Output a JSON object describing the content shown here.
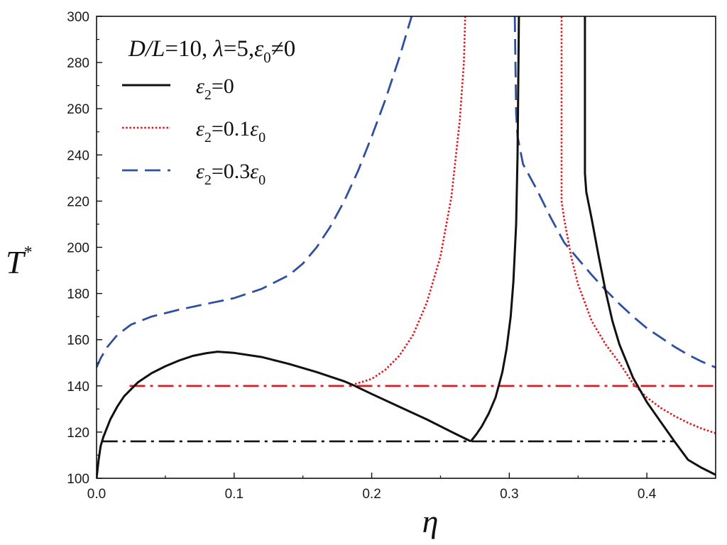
{
  "chart_data": {
    "type": "line",
    "title_parts": [
      "D/L",
      "=10, ",
      "λ",
      "=5,",
      "ε",
      "0",
      "≠0"
    ],
    "xlabel": "η",
    "ylabel": "T",
    "ylabel_sup": "*",
    "xlim": [
      0.0,
      0.45
    ],
    "ylim": [
      100,
      300
    ],
    "x_ticks": [
      0.0,
      0.1,
      0.2,
      0.3,
      0.4
    ],
    "x_tick_labels": [
      "0.0",
      "0.1",
      "0.2",
      "0.3",
      "0.4"
    ],
    "y_ticks": [
      100,
      120,
      140,
      160,
      180,
      200,
      220,
      240,
      260,
      280,
      300
    ],
    "y_tick_labels": [
      "100",
      "120",
      "140",
      "160",
      "180",
      "200",
      "220",
      "240",
      "260",
      "280",
      "300"
    ],
    "grid": false,
    "legend_position": "top-left",
    "series": [
      {
        "legend_parts": [
          "ε",
          "2",
          "=0"
        ],
        "color": "#111111",
        "style": "solid",
        "segments": [
          [
            [
              0.0,
              100
            ],
            [
              0.0015,
              108
            ],
            [
              0.003,
              114
            ],
            [
              0.005,
              118
            ],
            [
              0.01,
              125.5
            ],
            [
              0.015,
              131
            ],
            [
              0.02,
              135.5
            ],
            [
              0.03,
              141.5
            ],
            [
              0.04,
              145.5
            ],
            [
              0.05,
              148.5
            ],
            [
              0.06,
              151
            ],
            [
              0.07,
              153
            ],
            [
              0.08,
              154.2
            ],
            [
              0.088,
              154.8
            ],
            [
              0.1,
              154.3
            ],
            [
              0.12,
              152.5
            ],
            [
              0.14,
              149.5
            ],
            [
              0.16,
              146
            ],
            [
              0.18,
              142
            ],
            [
              0.186,
              140.5
            ],
            [
              0.2,
              136.5
            ],
            [
              0.22,
              131
            ],
            [
              0.24,
              125.5
            ],
            [
              0.26,
              119.5
            ],
            [
              0.272,
              116
            ]
          ],
          [
            [
              0.272,
              116
            ],
            [
              0.276,
              119
            ],
            [
              0.28,
              122.5
            ],
            [
              0.285,
              128
            ],
            [
              0.29,
              135
            ],
            [
              0.295,
              146
            ],
            [
              0.298,
              156
            ],
            [
              0.301,
              170
            ],
            [
              0.303,
              185
            ],
            [
              0.305,
              210
            ],
            [
              0.306,
              240
            ],
            [
              0.307,
              300
            ]
          ],
          [
            [
              0.355,
              300
            ],
            [
              0.355,
              232
            ],
            [
              0.356,
              224
            ],
            [
              0.36,
              212
            ],
            [
              0.365,
              196
            ],
            [
              0.37,
              181
            ],
            [
              0.375,
              168
            ],
            [
              0.38,
              158
            ],
            [
              0.39,
              143.5
            ],
            [
              0.4,
              133
            ],
            [
              0.41,
              124.5
            ],
            [
              0.42,
              116
            ],
            [
              0.43,
              108
            ],
            [
              0.44,
              104.5
            ],
            [
              0.45,
              101.5
            ]
          ]
        ]
      },
      {
        "legend_parts": [
          "ε",
          "2",
          "=0.1",
          "ε",
          "0"
        ],
        "color": "#e0191f",
        "style": "dotted",
        "segments": [
          [
            [
              0.0,
              100
            ],
            [
              0.0015,
              108
            ],
            [
              0.003,
              114
            ],
            [
              0.005,
              118
            ],
            [
              0.01,
              125.5
            ],
            [
              0.015,
              131
            ],
            [
              0.02,
              135.5
            ],
            [
              0.03,
              141.5
            ],
            [
              0.04,
              145.5
            ],
            [
              0.05,
              148.5
            ],
            [
              0.06,
              151
            ],
            [
              0.07,
              153
            ],
            [
              0.08,
              154.2
            ],
            [
              0.088,
              154.8
            ],
            [
              0.1,
              154.3
            ],
            [
              0.12,
              152.5
            ],
            [
              0.14,
              149.5
            ],
            [
              0.16,
              146
            ],
            [
              0.18,
              142
            ],
            [
              0.186,
              140.5
            ],
            [
              0.2,
              143
            ],
            [
              0.21,
              147
            ],
            [
              0.22,
              153
            ],
            [
              0.23,
              162
            ],
            [
              0.24,
              176
            ],
            [
              0.25,
              196
            ],
            [
              0.258,
              222
            ],
            [
              0.264,
              255
            ],
            [
              0.267,
              280
            ],
            [
              0.268,
              300
            ]
          ],
          [
            [
              0.338,
              300
            ],
            [
              0.338,
              220
            ],
            [
              0.34,
              212
            ],
            [
              0.345,
              196
            ],
            [
              0.35,
              184
            ],
            [
              0.36,
              168
            ],
            [
              0.37,
              158
            ],
            [
              0.38,
              150
            ],
            [
              0.39,
              141
            ],
            [
              0.4,
              135
            ],
            [
              0.41,
              130.5
            ],
            [
              0.42,
              127
            ],
            [
              0.43,
              124
            ],
            [
              0.44,
              121.5
            ],
            [
              0.45,
              119.5
            ]
          ]
        ]
      },
      {
        "legend_parts": [
          "ε",
          "2",
          "=0.3",
          "ε",
          "0"
        ],
        "color": "#2f4fa0",
        "style": "dashed",
        "segments": [
          [
            [
              0.0,
              148
            ],
            [
              0.003,
              152
            ],
            [
              0.008,
              157
            ],
            [
              0.015,
              162
            ],
            [
              0.025,
              166.5
            ],
            [
              0.04,
              170
            ],
            [
              0.06,
              173
            ],
            [
              0.08,
              175.5
            ],
            [
              0.1,
              178
            ],
            [
              0.12,
              182
            ],
            [
              0.14,
              188
            ],
            [
              0.15,
              193
            ],
            [
              0.16,
              200
            ],
            [
              0.17,
              209
            ],
            [
              0.18,
              220
            ],
            [
              0.19,
              233
            ],
            [
              0.2,
              248
            ],
            [
              0.21,
              264
            ],
            [
              0.22,
              282
            ],
            [
              0.229,
              300
            ]
          ],
          [
            [
              0.304,
              300
            ],
            [
              0.305,
              258
            ],
            [
              0.306,
              248
            ],
            [
              0.31,
              236
            ],
            [
              0.32,
              225
            ],
            [
              0.33,
              213
            ],
            [
              0.34,
              202
            ],
            [
              0.35,
              195
            ],
            [
              0.36,
              188
            ],
            [
              0.37,
              181.5
            ],
            [
              0.38,
              175.5
            ],
            [
              0.39,
              170
            ],
            [
              0.4,
              165
            ],
            [
              0.41,
              161
            ],
            [
              0.42,
              157
            ],
            [
              0.43,
              153.5
            ],
            [
              0.44,
              150.5
            ],
            [
              0.45,
              148
            ]
          ]
        ]
      },
      {
        "color": "#e0191f",
        "style": "dashdot",
        "segments": [
          [
            [
              0.024,
              140
            ],
            [
              0.45,
              140
            ]
          ]
        ]
      },
      {
        "color": "#111111",
        "style": "dashdot",
        "segments": [
          [
            [
              0.004,
              116
            ],
            [
              0.42,
              116
            ]
          ]
        ]
      }
    ]
  }
}
